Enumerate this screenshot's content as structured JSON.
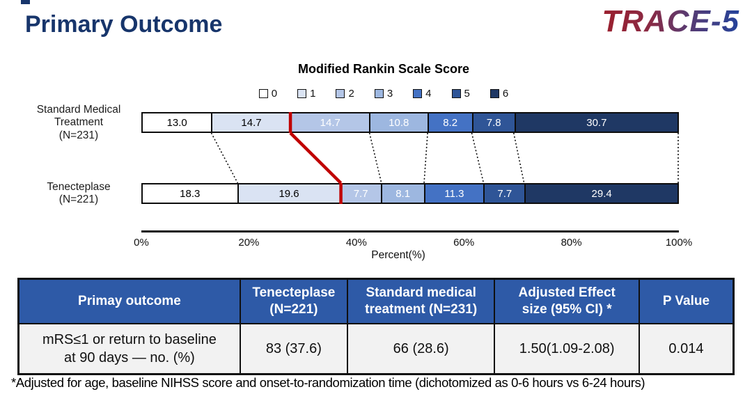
{
  "slide": {
    "title": "Primary Outcome",
    "logo": "TRACE-5",
    "title_color": "#17356b",
    "logo_gradient": [
      "#9b1f2d",
      "#24439b"
    ]
  },
  "chart_data": {
    "type": "stacked-bar-horizontal",
    "title": "Modified Rankin Scale Score",
    "categories": [
      "0",
      "1",
      "2",
      "3",
      "4",
      "5",
      "6"
    ],
    "colors": [
      "#ffffff",
      "#dae3f3",
      "#b4c6e7",
      "#9db7e0",
      "#4472c4",
      "#2f5597",
      "#1f3864"
    ],
    "series": [
      {
        "name": "Standard Medical\nTreatment\n(N=231)",
        "values": [
          13.0,
          14.7,
          14.7,
          10.8,
          8.2,
          7.8,
          30.7
        ]
      },
      {
        "name": "Tenecteplase\n(N=221)",
        "values": [
          18.3,
          19.6,
          7.7,
          8.1,
          11.3,
          7.7,
          29.4
        ]
      }
    ],
    "x_axis": {
      "ticks": [
        "0%",
        "20%",
        "40%",
        "60%",
        "80%",
        "100%"
      ],
      "label": "Percent(%)",
      "range": [
        0,
        100
      ]
    },
    "highlight": {
      "boundary_after_segment_count": 2,
      "color": "#c00000",
      "meaning": "mRS 0-1 cutoff line"
    },
    "connector_style": "dotted-black",
    "legend_position": "top"
  },
  "table": {
    "headers": [
      "Primay outcome",
      "Tenecteplase\n(N=221)",
      "Standard medical\ntreatment (N=231)",
      "Adjusted Effect\nsize (95% CI) *",
      "P Value"
    ],
    "rows": [
      [
        "mRS≤1 or  return to baseline\nat 90 days — no. (%)",
        "83 (37.6)",
        "66 (28.6)",
        "1.50(1.09-2.08)",
        "0.014"
      ]
    ],
    "header_bg": "#2e5aa7",
    "row_bg": "#f2f2f2"
  },
  "footnote": "*Adjusted for age, baseline NIHSS score and onset-to-randomization time (dichotomized as 0-6 hours vs 6-24 hours)"
}
